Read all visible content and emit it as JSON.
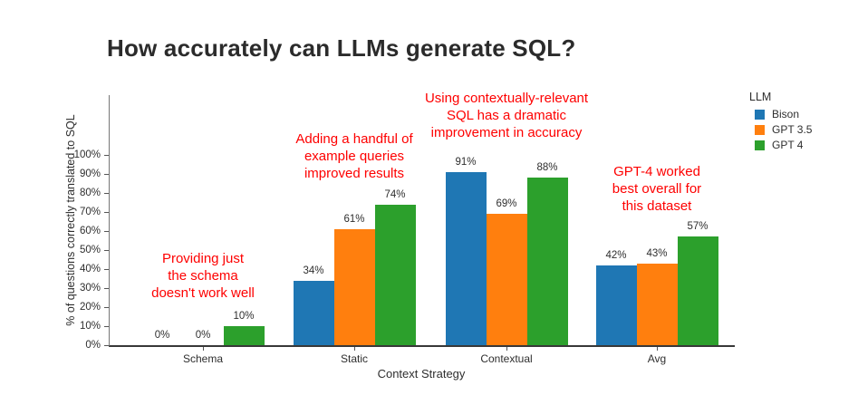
{
  "chart_data": {
    "type": "bar",
    "title": "How accurately can LLMs generate SQL?",
    "categories": [
      "Schema",
      "Static",
      "Contextual",
      "Avg"
    ],
    "series": [
      {
        "name": "Bison",
        "color": "#1f77b4",
        "values": [
          0,
          34,
          91,
          42
        ],
        "labels": [
          "0%",
          "34%",
          "91%",
          "42%"
        ]
      },
      {
        "name": "GPT 3.5",
        "color": "#ff7f0e",
        "values": [
          0,
          61,
          69,
          43
        ],
        "labels": [
          "0%",
          "61%",
          "69%",
          "43%"
        ]
      },
      {
        "name": "GPT 4",
        "color": "#2ca02c",
        "values": [
          10,
          74,
          88,
          57
        ],
        "labels": [
          "10%",
          "74%",
          "88%",
          "57%"
        ]
      }
    ],
    "xlabel": "Context Strategy",
    "ylabel": "% of questions correctly translated to SQL",
    "ylim": [
      0,
      131
    ],
    "yticks": [
      {
        "value": 0,
        "label": "0%"
      },
      {
        "value": 10,
        "label": "10%"
      },
      {
        "value": 20,
        "label": "20%"
      },
      {
        "value": 30,
        "label": "30%"
      },
      {
        "value": 40,
        "label": "40%"
      },
      {
        "value": 50,
        "label": "50%"
      },
      {
        "value": 60,
        "label": "60%"
      },
      {
        "value": 70,
        "label": "70%"
      },
      {
        "value": 80,
        "label": "80%"
      },
      {
        "value": 90,
        "label": "90%"
      },
      {
        "value": 100,
        "label": "100%"
      }
    ],
    "grid": false,
    "legend": {
      "title": "LLM",
      "position": "right"
    },
    "annotation_color": "#fe0000",
    "annotations": [
      {
        "category": "Schema",
        "lines": [
          "Providing just",
          "the schema",
          "doesn't work well"
        ]
      },
      {
        "category": "Static",
        "lines": [
          "Adding a handful of",
          "example queries",
          "improved results"
        ]
      },
      {
        "category": "Contextual",
        "lines": [
          "Using contextually-relevant",
          "SQL has a dramatic",
          "improvement in accuracy"
        ]
      },
      {
        "category": "Avg",
        "lines": [
          "GPT-4 worked",
          "best overall for",
          "this dataset"
        ]
      }
    ]
  }
}
